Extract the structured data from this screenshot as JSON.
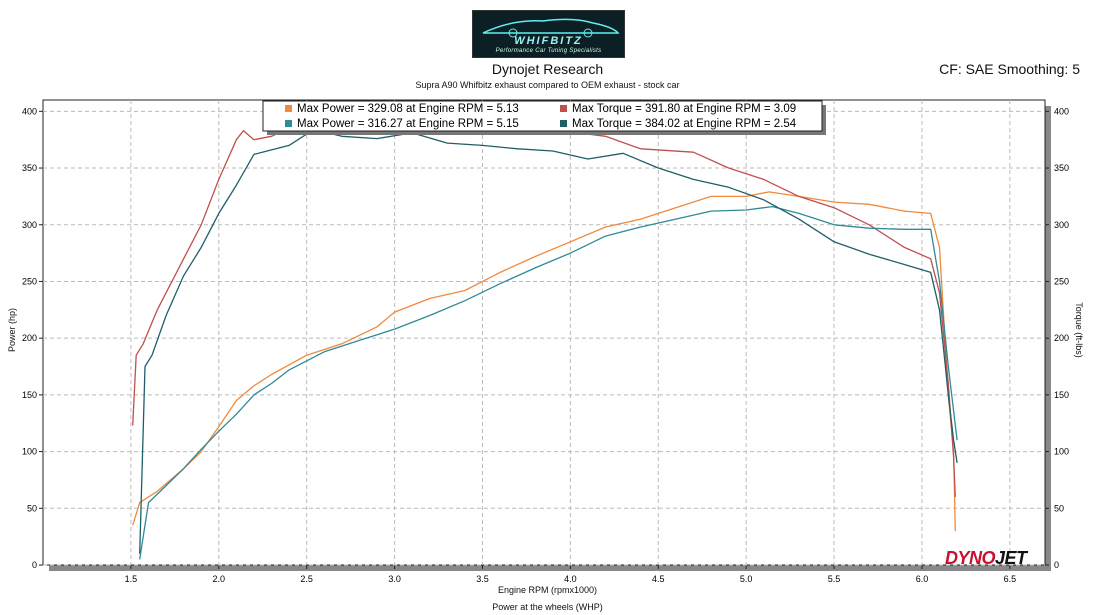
{
  "header": {
    "logo_text": "WHIFBITZ",
    "logo_tagline": "Performance Car Tuning Specialists",
    "title": "Dynojet Research",
    "subtitle": "Supra A90 Whifbitz exhaust compared to OEM exhaust - stock car",
    "cf_label": "CF: SAE Smoothing: 5"
  },
  "footer": {
    "caption": "Power at the wheels (WHP)",
    "brand_left": "DYNO",
    "brand_right": "JET"
  },
  "chart_data": {
    "type": "line",
    "title": "Dynojet Research",
    "xlabel": "Engine RPM (rpmx1000)",
    "ylabel_left": "Power (hp)",
    "ylabel_right": "Torque (ft-lbs)",
    "xlim": [
      1.0,
      6.7
    ],
    "ylim": [
      0,
      410
    ],
    "x_ticks": [
      "1.5",
      "2.0",
      "2.5",
      "3.0",
      "3.5",
      "4.0",
      "4.5",
      "5.0",
      "5.5",
      "6.0",
      "6.5"
    ],
    "y_ticks": [
      "0",
      "50",
      "100",
      "150",
      "200",
      "250",
      "300",
      "350",
      "400"
    ],
    "grid": true,
    "legend_position": "top-center",
    "legend": [
      {
        "label": "Max Power = 329.08 at Engine RPM = 5.13",
        "color": "#f08a3c"
      },
      {
        "label": "Max Torque = 391.80 at Engine RPM = 3.09",
        "color": "#c0504d"
      },
      {
        "label": "Max Power = 316.27 at Engine RPM = 5.15",
        "color": "#2e8b97"
      },
      {
        "label": "Max Torque = 384.02 at Engine RPM = 2.54",
        "color": "#1f5f68"
      }
    ],
    "series": [
      {
        "color": "#f08a3c",
        "points": [
          [
            1.51,
            35
          ],
          [
            1.55,
            55
          ],
          [
            1.65,
            65
          ],
          [
            1.8,
            85
          ],
          [
            1.9,
            100
          ],
          [
            2.0,
            122
          ],
          [
            2.1,
            145
          ],
          [
            2.2,
            158
          ],
          [
            2.3,
            168
          ],
          [
            2.5,
            185
          ],
          [
            2.7,
            195
          ],
          [
            2.9,
            210
          ],
          [
            3.0,
            223
          ],
          [
            3.2,
            235
          ],
          [
            3.4,
            242
          ],
          [
            3.6,
            258
          ],
          [
            3.8,
            272
          ],
          [
            4.0,
            285
          ],
          [
            4.2,
            298
          ],
          [
            4.4,
            305
          ],
          [
            4.6,
            315
          ],
          [
            4.8,
            325
          ],
          [
            5.0,
            325
          ],
          [
            5.13,
            329
          ],
          [
            5.3,
            325
          ],
          [
            5.5,
            320
          ],
          [
            5.7,
            318
          ],
          [
            5.9,
            312
          ],
          [
            6.05,
            310
          ],
          [
            6.1,
            280
          ],
          [
            6.15,
            150
          ],
          [
            6.18,
            100
          ],
          [
            6.19,
            30
          ]
        ]
      },
      {
        "color": "#c0504d",
        "points": [
          [
            1.51,
            123
          ],
          [
            1.53,
            185
          ],
          [
            1.57,
            195
          ],
          [
            1.65,
            225
          ],
          [
            1.8,
            270
          ],
          [
            1.9,
            300
          ],
          [
            2.0,
            340
          ],
          [
            2.1,
            375
          ],
          [
            2.14,
            383
          ],
          [
            2.2,
            375
          ],
          [
            2.3,
            378
          ],
          [
            2.4,
            385
          ],
          [
            2.6,
            385
          ],
          [
            2.8,
            387
          ],
          [
            3.0,
            390
          ],
          [
            3.09,
            392
          ],
          [
            3.3,
            386
          ],
          [
            3.5,
            382
          ],
          [
            3.7,
            380
          ],
          [
            4.0,
            382
          ],
          [
            4.2,
            378
          ],
          [
            4.4,
            367
          ],
          [
            4.7,
            364
          ],
          [
            4.9,
            350
          ],
          [
            5.1,
            340
          ],
          [
            5.3,
            325
          ],
          [
            5.5,
            315
          ],
          [
            5.7,
            300
          ],
          [
            5.9,
            280
          ],
          [
            6.05,
            270
          ],
          [
            6.1,
            240
          ],
          [
            6.15,
            160
          ],
          [
            6.18,
            95
          ],
          [
            6.19,
            60
          ]
        ]
      },
      {
        "color": "#2e8b97",
        "points": [
          [
            1.55,
            5
          ],
          [
            1.6,
            55
          ],
          [
            1.7,
            70
          ],
          [
            1.8,
            85
          ],
          [
            1.9,
            102
          ],
          [
            2.0,
            118
          ],
          [
            2.1,
            133
          ],
          [
            2.2,
            150
          ],
          [
            2.3,
            160
          ],
          [
            2.4,
            172
          ],
          [
            2.6,
            188
          ],
          [
            2.8,
            198
          ],
          [
            3.0,
            208
          ],
          [
            3.2,
            220
          ],
          [
            3.4,
            233
          ],
          [
            3.6,
            248
          ],
          [
            3.8,
            262
          ],
          [
            4.0,
            275
          ],
          [
            4.2,
            290
          ],
          [
            4.4,
            298
          ],
          [
            4.6,
            305
          ],
          [
            4.8,
            312
          ],
          [
            5.0,
            313
          ],
          [
            5.15,
            316
          ],
          [
            5.3,
            310
          ],
          [
            5.5,
            300
          ],
          [
            5.7,
            297
          ],
          [
            5.9,
            296
          ],
          [
            6.05,
            296
          ],
          [
            6.1,
            250
          ],
          [
            6.15,
            175
          ],
          [
            6.2,
            110
          ]
        ]
      },
      {
        "color": "#1f5f68",
        "points": [
          [
            1.55,
            10
          ],
          [
            1.58,
            175
          ],
          [
            1.62,
            185
          ],
          [
            1.7,
            220
          ],
          [
            1.8,
            255
          ],
          [
            1.9,
            280
          ],
          [
            2.0,
            310
          ],
          [
            2.1,
            335
          ],
          [
            2.2,
            362
          ],
          [
            2.3,
            366
          ],
          [
            2.4,
            370
          ],
          [
            2.54,
            384
          ],
          [
            2.7,
            378
          ],
          [
            2.9,
            376
          ],
          [
            3.1,
            381
          ],
          [
            3.3,
            372
          ],
          [
            3.5,
            370
          ],
          [
            3.7,
            367
          ],
          [
            3.9,
            365
          ],
          [
            4.1,
            358
          ],
          [
            4.3,
            363
          ],
          [
            4.5,
            350
          ],
          [
            4.7,
            340
          ],
          [
            4.9,
            333
          ],
          [
            5.1,
            322
          ],
          [
            5.3,
            305
          ],
          [
            5.5,
            285
          ],
          [
            5.7,
            274
          ],
          [
            5.9,
            265
          ],
          [
            6.05,
            258
          ],
          [
            6.1,
            225
          ],
          [
            6.15,
            150
          ],
          [
            6.18,
            110
          ],
          [
            6.2,
            90
          ]
        ]
      }
    ]
  }
}
